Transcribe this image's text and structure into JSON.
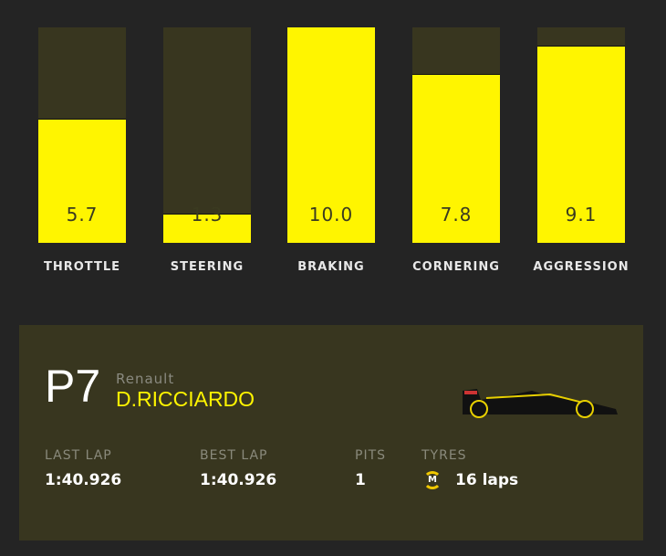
{
  "metrics": [
    {
      "label": "THROTTLE",
      "value": "5.7",
      "fraction": 0.57
    },
    {
      "label": "STEERING",
      "value": "1.3",
      "fraction": 0.13
    },
    {
      "label": "BRAKING",
      "value": "10.0",
      "fraction": 1.0
    },
    {
      "label": "CORNERING",
      "value": "7.8",
      "fraction": 0.78
    },
    {
      "label": "AGGRESSION",
      "value": "9.1",
      "fraction": 0.91
    }
  ],
  "colors": {
    "accent": "#fff500",
    "bar_bg": "#38361f",
    "page_bg": "#242424",
    "tyre_medium": "#f0c800"
  },
  "driver": {
    "position": "P7",
    "team": "Renault",
    "name": "D.RICCIARDO",
    "last_lap_label": "LAST LAP",
    "last_lap": "1:40.926",
    "best_lap_label": "BEST LAP",
    "best_lap": "1:40.926",
    "pits_label": "PITS",
    "pits": "1",
    "tyres_label": "TYRES",
    "tyre_compound": "M",
    "tyre_laps": "16 laps"
  }
}
